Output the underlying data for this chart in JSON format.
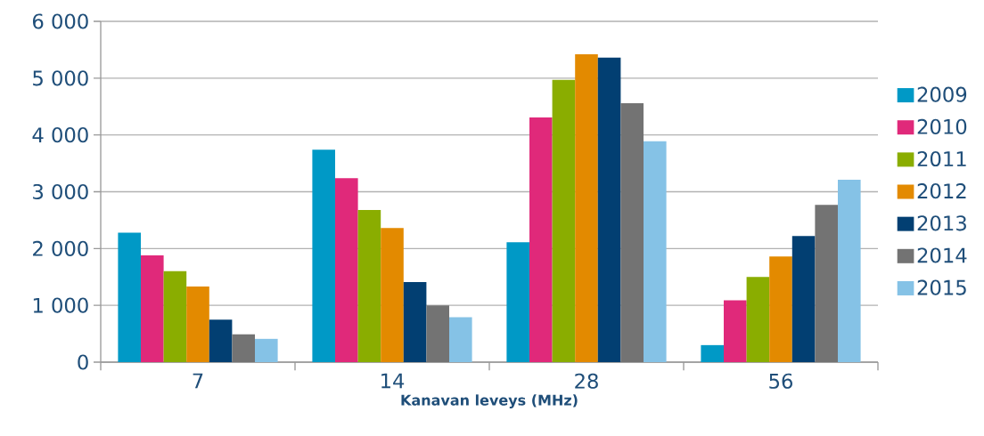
{
  "chart_data": {
    "type": "bar",
    "xlabel": "Kanavan leveys (MHz)",
    "categories": [
      "7",
      "14",
      "28",
      "56"
    ],
    "series": [
      {
        "name": "2009",
        "color": "#0099c6",
        "values": [
          2280,
          3740,
          2110,
          300
        ]
      },
      {
        "name": "2010",
        "color": "#e0297a",
        "values": [
          1880,
          3240,
          4310,
          1090
        ]
      },
      {
        "name": "2011",
        "color": "#8aad00",
        "values": [
          1600,
          2680,
          4970,
          1500
        ]
      },
      {
        "name": "2012",
        "color": "#e38a00",
        "values": [
          1330,
          2360,
          5420,
          1860
        ]
      },
      {
        "name": "2013",
        "color": "#023f72",
        "values": [
          750,
          1410,
          5360,
          2220
        ]
      },
      {
        "name": "2014",
        "color": "#737373",
        "values": [
          490,
          1000,
          4560,
          2770
        ]
      },
      {
        "name": "2015",
        "color": "#85c2e6",
        "values": [
          410,
          790,
          3890,
          3210
        ]
      }
    ],
    "ylim": [
      0,
      6000
    ],
    "yticks": [
      {
        "value": 0,
        "label": "0"
      },
      {
        "value": 1000,
        "label": "1 000"
      },
      {
        "value": 2000,
        "label": "2 000"
      },
      {
        "value": 3000,
        "label": "3 000"
      },
      {
        "value": 4000,
        "label": "4 000"
      },
      {
        "value": 5000,
        "label": "5 000"
      },
      {
        "value": 6000,
        "label": "6 000"
      }
    ],
    "grid": "y",
    "legend": "right"
  }
}
